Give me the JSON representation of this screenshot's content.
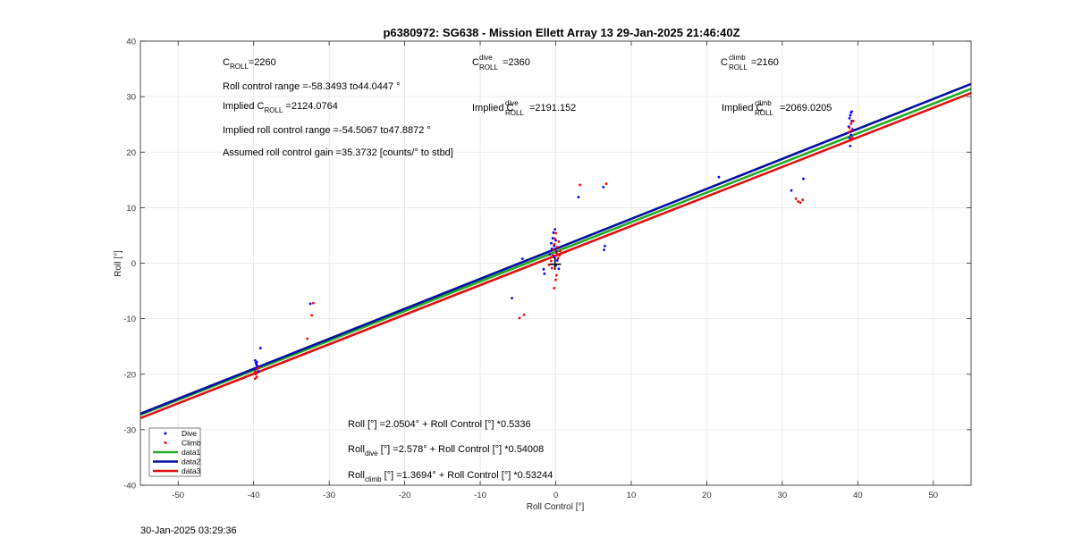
{
  "chart_data": {
    "type": "scatter",
    "title": "p6380972: SG638 - Mission Ellett Array 13 29-Jan-2025 21:46:40Z",
    "xlabel": "Roll Control [°]",
    "ylabel": "Roll [°]",
    "xlim": [
      -55,
      55
    ],
    "ylim": [
      -40,
      40
    ],
    "xticks": [
      -50,
      -40,
      -30,
      -20,
      -10,
      0,
      10,
      20,
      30,
      40,
      50
    ],
    "yticks": [
      -40,
      -30,
      -20,
      -10,
      0,
      10,
      20,
      30,
      40
    ],
    "grid": true,
    "legend_position": "bottom-left",
    "timestamp": "30-Jan-2025 03:29:36",
    "annotations": {
      "croll": {
        "main": "C",
        "sub": "ROLL",
        "rest": "=2260"
      },
      "range": "Roll control range =-58.3493 to44.0447 °",
      "implied_croll": {
        "pre": "Implied C",
        "sub": "ROLL",
        "rest": " =2124.0764"
      },
      "implied_range": "Implied roll control range =-54.5067 to47.8872 °",
      "gain": "Assumed roll control gain =35.3732 [counts/° to stbd]",
      "croll_dive": {
        "main": "C",
        "sup": "dive",
        "sub": "ROLL",
        "rest": "=2360"
      },
      "implied_dive": {
        "pre": "Implied C",
        "sup": "dive",
        "sub": "ROLL",
        "rest": "=2191.152"
      },
      "croll_climb": {
        "main": "C",
        "sup": "climb",
        "sub": "ROLL",
        "rest": "=2160"
      },
      "implied_climb": {
        "pre": "Implied C",
        "sup": "climb",
        "sub": "ROLL",
        "rest": "=2069.0205"
      },
      "fit_all": "Roll [°] =2.0504° + Roll Control [°] *0.5336",
      "fit_dive": {
        "pre": "Roll",
        "sub": "dive",
        "rest": " [°] =2.578° + Roll Control [°] *0.54008"
      },
      "fit_climb": {
        "pre": "Roll",
        "sub": "climb",
        "rest": " [°] =1.3694° + Roll Control [°] *0.53244"
      }
    },
    "series": [
      {
        "name": "Dive",
        "kind": "scatter",
        "color": "#0000ff",
        "points": [
          [
            -39.8,
            -17.5
          ],
          [
            -39.7,
            -18.0
          ],
          [
            -39.6,
            -18.3
          ],
          [
            -39.5,
            -18.6
          ],
          [
            -39.8,
            -19.0
          ],
          [
            -39.6,
            -17.8
          ],
          [
            -39.4,
            -19.5
          ],
          [
            -39.1,
            -15.3
          ],
          [
            -32.5,
            -7.3
          ],
          [
            -5.8,
            -6.3
          ],
          [
            -4.4,
            0.8
          ],
          [
            -1.6,
            -1.1
          ],
          [
            -1.5,
            -1.9
          ],
          [
            -0.8,
            1.6
          ],
          [
            -0.6,
            3.6
          ],
          [
            -0.5,
            2.6
          ],
          [
            -0.4,
            4.5
          ],
          [
            -0.3,
            5.5
          ],
          [
            -0.2,
            3.1
          ],
          [
            -0.1,
            6.1
          ],
          [
            0.0,
            4.1
          ],
          [
            0.1,
            2.1
          ],
          [
            -0.2,
            1.1
          ],
          [
            0.2,
            0.5
          ],
          [
            0.4,
            -1.0
          ],
          [
            0.0,
            -0.4
          ],
          [
            3.0,
            11.9
          ],
          [
            6.3,
            13.7
          ],
          [
            6.4,
            2.4
          ],
          [
            6.5,
            3.1
          ],
          [
            21.6,
            15.5
          ],
          [
            31.2,
            13.1
          ],
          [
            32.8,
            15.2
          ],
          [
            38.8,
            24.6
          ],
          [
            38.9,
            26.1
          ],
          [
            39.0,
            26.6
          ],
          [
            39.1,
            27.1
          ],
          [
            39.2,
            25.6
          ],
          [
            39.3,
            24.1
          ],
          [
            39.1,
            23.1
          ],
          [
            39.2,
            27.3
          ],
          [
            38.9,
            22.6
          ],
          [
            39.0,
            21.1
          ]
        ]
      },
      {
        "name": "Climb",
        "kind": "scatter",
        "color": "#ff0000",
        "points": [
          [
            -39.8,
            -19.5
          ],
          [
            -39.7,
            -20.0
          ],
          [
            -39.6,
            -20.5
          ],
          [
            -39.5,
            -19.0
          ],
          [
            -39.8,
            -20.8
          ],
          [
            -39.3,
            -18.8
          ],
          [
            -32.9,
            -13.6
          ],
          [
            -32.3,
            -9.4
          ],
          [
            -32.1,
            -7.2
          ],
          [
            -4.8,
            -9.9
          ],
          [
            -4.2,
            -9.3
          ],
          [
            -0.9,
            -0.3
          ],
          [
            -0.6,
            0.4
          ],
          [
            -0.4,
            1.4
          ],
          [
            -0.3,
            2.4
          ],
          [
            -0.2,
            3.4
          ],
          [
            -0.1,
            4.4
          ],
          [
            0.0,
            5.4
          ],
          [
            0.1,
            1.9
          ],
          [
            0.2,
            2.9
          ],
          [
            -0.5,
            -0.9
          ],
          [
            0.3,
            0.9
          ],
          [
            0.5,
            1.4
          ],
          [
            0.1,
            -2.2
          ],
          [
            -0.2,
            -4.5
          ],
          [
            0.0,
            -3.0
          ],
          [
            0.4,
            3.9
          ],
          [
            0.6,
            2.2
          ],
          [
            3.2,
            14.1
          ],
          [
            6.7,
            14.3
          ],
          [
            31.8,
            11.6
          ],
          [
            32.1,
            11.1
          ],
          [
            32.4,
            10.9
          ],
          [
            32.7,
            11.4
          ],
          [
            38.8,
            23.6
          ],
          [
            38.9,
            24.4
          ],
          [
            39.0,
            22.1
          ],
          [
            39.1,
            25.1
          ],
          [
            39.2,
            23.9
          ],
          [
            39.3,
            22.6
          ],
          [
            39.4,
            25.6
          ],
          [
            39.2,
            22.4
          ]
        ]
      },
      {
        "name": "data1",
        "kind": "line",
        "color": "#22aa22",
        "x": [
          -55,
          55
        ],
        "y": [
          -27.298,
          31.398
        ]
      },
      {
        "name": "data2",
        "kind": "line",
        "color": "#0010a0",
        "x": [
          -55,
          55
        ],
        "y": [
          -27.126,
          32.283
        ]
      },
      {
        "name": "data3",
        "kind": "line",
        "color": "#dd1111",
        "x": [
          -55,
          55
        ],
        "y": [
          -27.915,
          30.653
        ]
      }
    ]
  }
}
